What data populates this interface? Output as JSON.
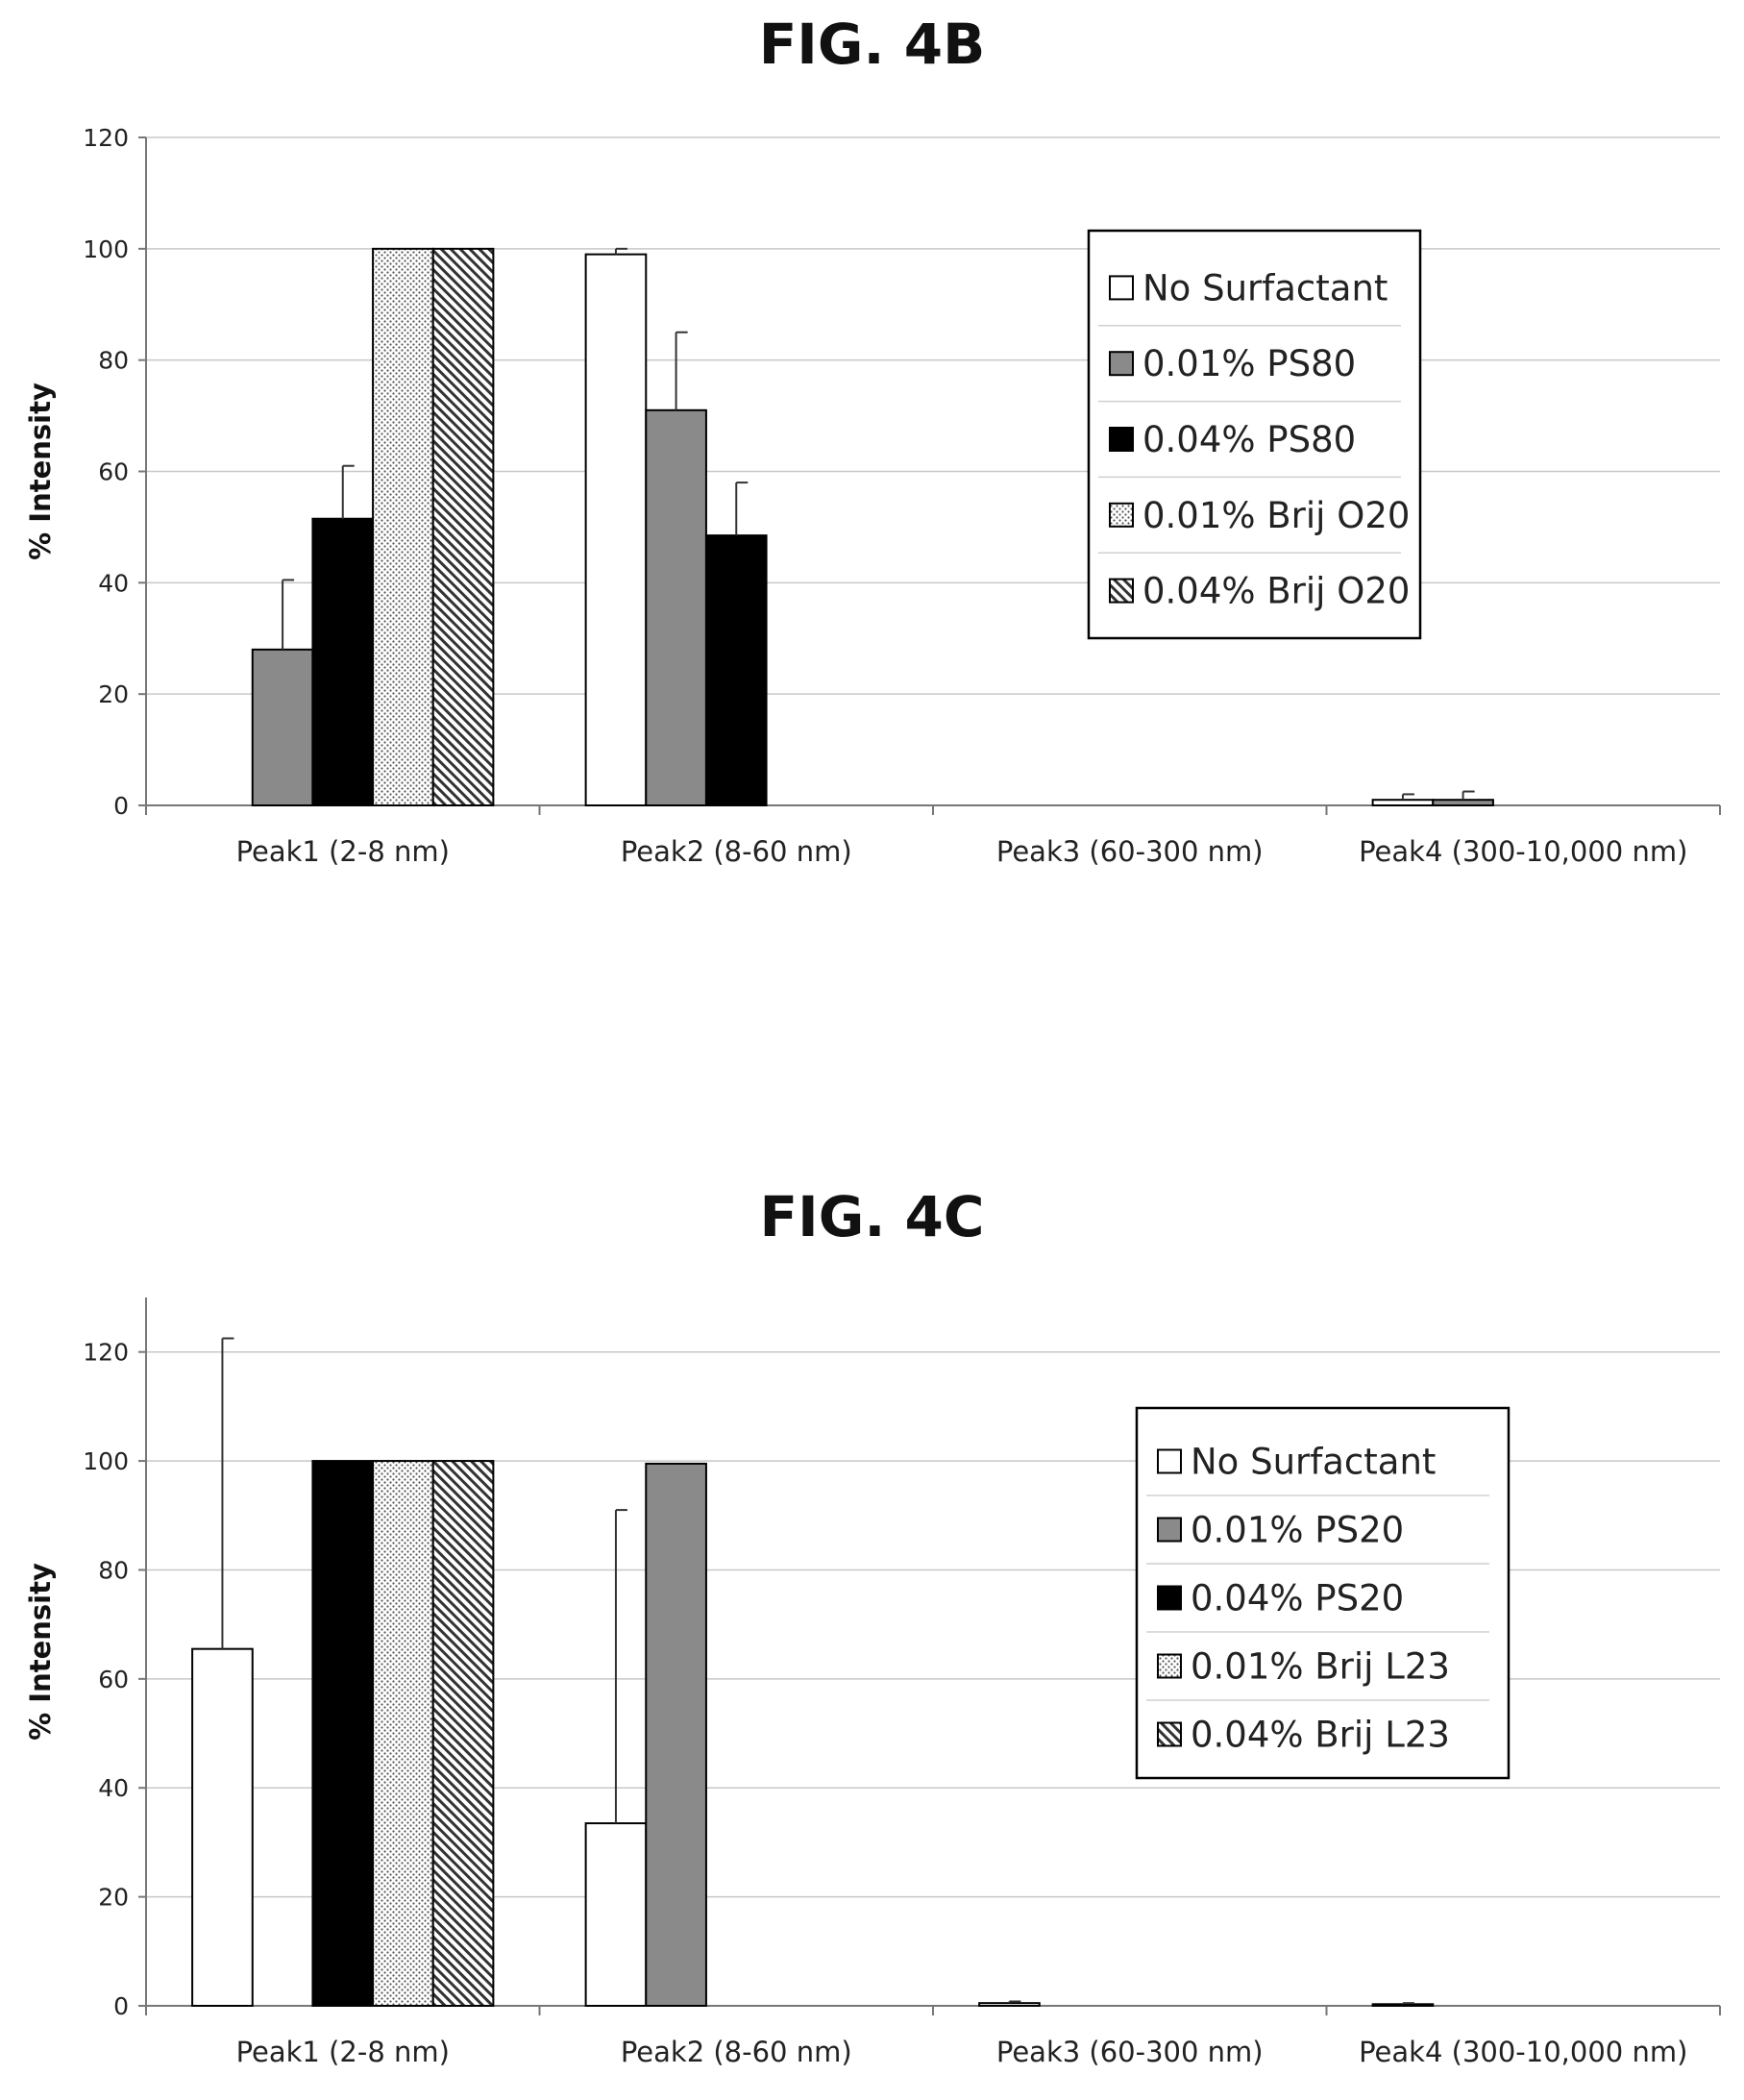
{
  "chart_data": [
    {
      "type": "bar",
      "title": "FIG. 4B",
      "ylabel": "% Intensity",
      "xlabel": "",
      "ylim": [
        0,
        120
      ],
      "yticks": [
        0,
        20,
        40,
        60,
        80,
        100,
        120
      ],
      "grid": true,
      "legend": "right",
      "categories": [
        "Peak1 (2-8 nm)",
        "Peak2 (8-60 nm)",
        "Peak3 (60-300 nm)",
        "Peak4 (300-10,000 nm)"
      ],
      "series": [
        {
          "name": "No Surfactant",
          "pattern": "white",
          "values": [
            0,
            99,
            0,
            1
          ],
          "errors": [
            0,
            1,
            0,
            1
          ]
        },
        {
          "name": "0.01% PS80",
          "pattern": "gray",
          "values": [
            28,
            71,
            0,
            1
          ],
          "errors": [
            12.5,
            14,
            0,
            1.5
          ]
        },
        {
          "name": "0.04% PS80",
          "pattern": "black",
          "values": [
            51.5,
            48.5,
            0,
            0
          ],
          "errors": [
            9.5,
            9.5,
            0,
            0
          ]
        },
        {
          "name": "0.01% Brij O20",
          "pattern": "dotted",
          "values": [
            100,
            0,
            0,
            0
          ],
          "errors": [
            0,
            0,
            0,
            0
          ]
        },
        {
          "name": "0.04% Brij O20",
          "pattern": "hatched",
          "values": [
            100,
            0,
            0,
            0
          ],
          "errors": [
            0,
            0,
            0,
            0
          ]
        }
      ]
    },
    {
      "type": "bar",
      "title": "FIG. 4C",
      "ylabel": "% Intensity",
      "xlabel": "",
      "ylim": [
        0,
        130
      ],
      "yticks": [
        0,
        20,
        40,
        60,
        80,
        100,
        120
      ],
      "grid": true,
      "legend": "right",
      "categories": [
        "Peak1 (2-8 nm)",
        "Peak2 (8-60 nm)",
        "Peak3 (60-300 nm)",
        "Peak4 (300-10,000 nm)"
      ],
      "series": [
        {
          "name": "No Surfactant",
          "pattern": "white",
          "values": [
            65.5,
            33.5,
            0.5,
            0.3
          ],
          "errors": [
            57,
            57.5,
            0.3,
            0.2
          ]
        },
        {
          "name": "0.01% PS20",
          "pattern": "gray",
          "values": [
            0,
            99.5,
            0,
            0
          ],
          "errors": [
            0,
            0,
            0,
            0
          ]
        },
        {
          "name": "0.04% PS20",
          "pattern": "black",
          "values": [
            100,
            0,
            0,
            0
          ],
          "errors": [
            0,
            0,
            0,
            0
          ]
        },
        {
          "name": "0.01% Brij L23",
          "pattern": "dotted",
          "values": [
            100,
            0,
            0,
            0
          ],
          "errors": [
            0,
            0,
            0,
            0
          ]
        },
        {
          "name": "0.04% Brij L23",
          "pattern": "hatched",
          "values": [
            100,
            0,
            0,
            0
          ],
          "errors": [
            0,
            0,
            0,
            0
          ]
        }
      ]
    }
  ]
}
